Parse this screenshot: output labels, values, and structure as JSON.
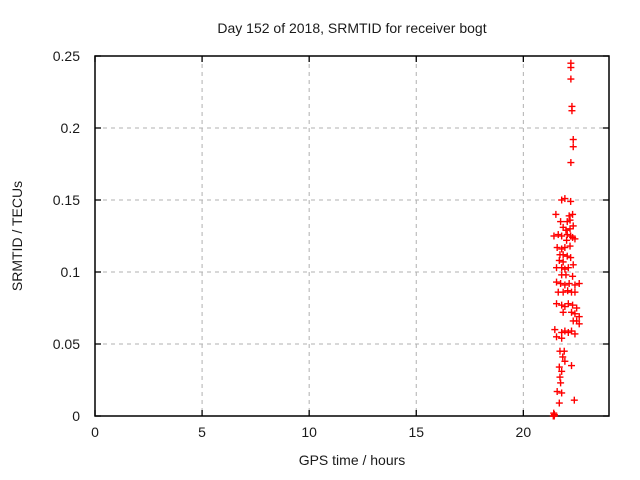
{
  "window": {
    "background": "#ffffff"
  },
  "chart_data": {
    "type": "scatter",
    "title": "Day 152 of 2018, SRMTID for receiver bogt",
    "xlabel": "GPS time / hours",
    "ylabel": "SRMTID / TECUs",
    "xlim": [
      0,
      24
    ],
    "ylim": [
      0,
      0.25
    ],
    "xticks": [
      0,
      5,
      10,
      15,
      20
    ],
    "xtick_labels": [
      "0",
      "5",
      "10",
      "15",
      "20"
    ],
    "yticks": [
      0,
      0.05,
      0.1,
      0.15,
      0.2,
      0.25
    ],
    "ytick_labels": [
      "0",
      "0.05",
      "0.1",
      "0.15",
      "0.2",
      "0.25"
    ],
    "grid": "dashed",
    "legend_position": "none",
    "marker": "plus",
    "marker_color": "#ff0000",
    "grid_color": "#b0b0b0",
    "axis_color": "#000000",
    "text_color": "#1a1a1a",
    "series": [
      {
        "name": "SRMTID",
        "points": [
          [
            22.22,
            0.245
          ],
          [
            22.22,
            0.242
          ],
          [
            22.22,
            0.234
          ],
          [
            22.27,
            0.215
          ],
          [
            22.27,
            0.212
          ],
          [
            22.33,
            0.192
          ],
          [
            22.33,
            0.187
          ],
          [
            22.22,
            0.176
          ],
          [
            21.79,
            0.15
          ],
          [
            21.94,
            0.151
          ],
          [
            22.21,
            0.149
          ],
          [
            21.52,
            0.14
          ],
          [
            22.14,
            0.139
          ],
          [
            22.3,
            0.14
          ],
          [
            21.74,
            0.135
          ],
          [
            22.05,
            0.135
          ],
          [
            22.18,
            0.136
          ],
          [
            22.33,
            0.132
          ],
          [
            21.86,
            0.131
          ],
          [
            21.99,
            0.129
          ],
          [
            22.18,
            0.13
          ],
          [
            21.63,
            0.126
          ],
          [
            21.43,
            0.125
          ],
          [
            21.79,
            0.125
          ],
          [
            22.21,
            0.125
          ],
          [
            22.41,
            0.123
          ],
          [
            22.05,
            0.126
          ],
          [
            22.02,
            0.122
          ],
          [
            22.3,
            0.124
          ],
          [
            22.18,
            0.118
          ],
          [
            21.58,
            0.117
          ],
          [
            21.79,
            0.116
          ],
          [
            21.94,
            0.117
          ],
          [
            21.71,
            0.112
          ],
          [
            21.86,
            0.112
          ],
          [
            22.05,
            0.111
          ],
          [
            22.21,
            0.11
          ],
          [
            21.68,
            0.108
          ],
          [
            21.86,
            0.107
          ],
          [
            22.33,
            0.105
          ],
          [
            21.55,
            0.103
          ],
          [
            21.79,
            0.103
          ],
          [
            21.94,
            0.102
          ],
          [
            22.1,
            0.103
          ],
          [
            21.79,
            0.098
          ],
          [
            21.99,
            0.098
          ],
          [
            22.3,
            0.097
          ],
          [
            21.55,
            0.093
          ],
          [
            21.74,
            0.092
          ],
          [
            21.94,
            0.091
          ],
          [
            22.14,
            0.092
          ],
          [
            22.41,
            0.091
          ],
          [
            22.61,
            0.092
          ],
          [
            21.63,
            0.086
          ],
          [
            21.86,
            0.086
          ],
          [
            22.07,
            0.087
          ],
          [
            22.25,
            0.086
          ],
          [
            22.41,
            0.086
          ],
          [
            21.55,
            0.078
          ],
          [
            21.79,
            0.077
          ],
          [
            21.94,
            0.076
          ],
          [
            22.1,
            0.078
          ],
          [
            22.3,
            0.077
          ],
          [
            22.49,
            0.075
          ],
          [
            21.86,
            0.072
          ],
          [
            22.25,
            0.072
          ],
          [
            22.41,
            0.071
          ],
          [
            22.61,
            0.069
          ],
          [
            22.33,
            0.066
          ],
          [
            22.49,
            0.066
          ],
          [
            22.61,
            0.064
          ],
          [
            21.47,
            0.06
          ],
          [
            21.79,
            0.058
          ],
          [
            21.94,
            0.059
          ],
          [
            22.1,
            0.058
          ],
          [
            22.25,
            0.059
          ],
          [
            22.41,
            0.057
          ],
          [
            21.55,
            0.055
          ],
          [
            21.79,
            0.054
          ],
          [
            21.71,
            0.045
          ],
          [
            21.91,
            0.045
          ],
          [
            21.84,
            0.041
          ],
          [
            21.94,
            0.038
          ],
          [
            22.25,
            0.035
          ],
          [
            21.68,
            0.034
          ],
          [
            21.79,
            0.031
          ],
          [
            21.71,
            0.027
          ],
          [
            21.74,
            0.023
          ],
          [
            21.58,
            0.017
          ],
          [
            21.79,
            0.016
          ],
          [
            21.68,
            0.009
          ],
          [
            22.38,
            0.011
          ],
          [
            21.4,
            0.0
          ],
          [
            21.43,
            0.0
          ],
          [
            21.45,
            0.001
          ],
          [
            21.42,
            0.002
          ],
          [
            21.44,
            0.0
          ]
        ]
      }
    ]
  }
}
